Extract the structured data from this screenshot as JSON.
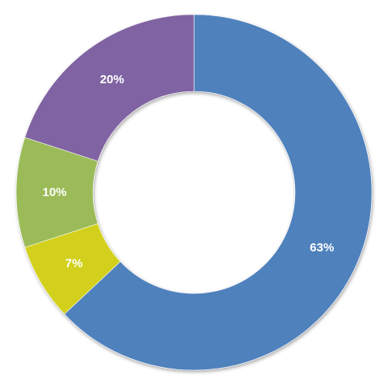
{
  "chart_data": {
    "type": "pie",
    "title": "",
    "slices": [
      {
        "label": "63%",
        "value": 63,
        "color": "#4F81BD"
      },
      {
        "label": "7%",
        "value": 7,
        "color": "#D2D01A"
      },
      {
        "label": "10%",
        "value": 10,
        "color": "#9BBB59"
      },
      {
        "label": "20%",
        "value": 20,
        "color": "#8064A2"
      }
    ],
    "legend": "none"
  }
}
